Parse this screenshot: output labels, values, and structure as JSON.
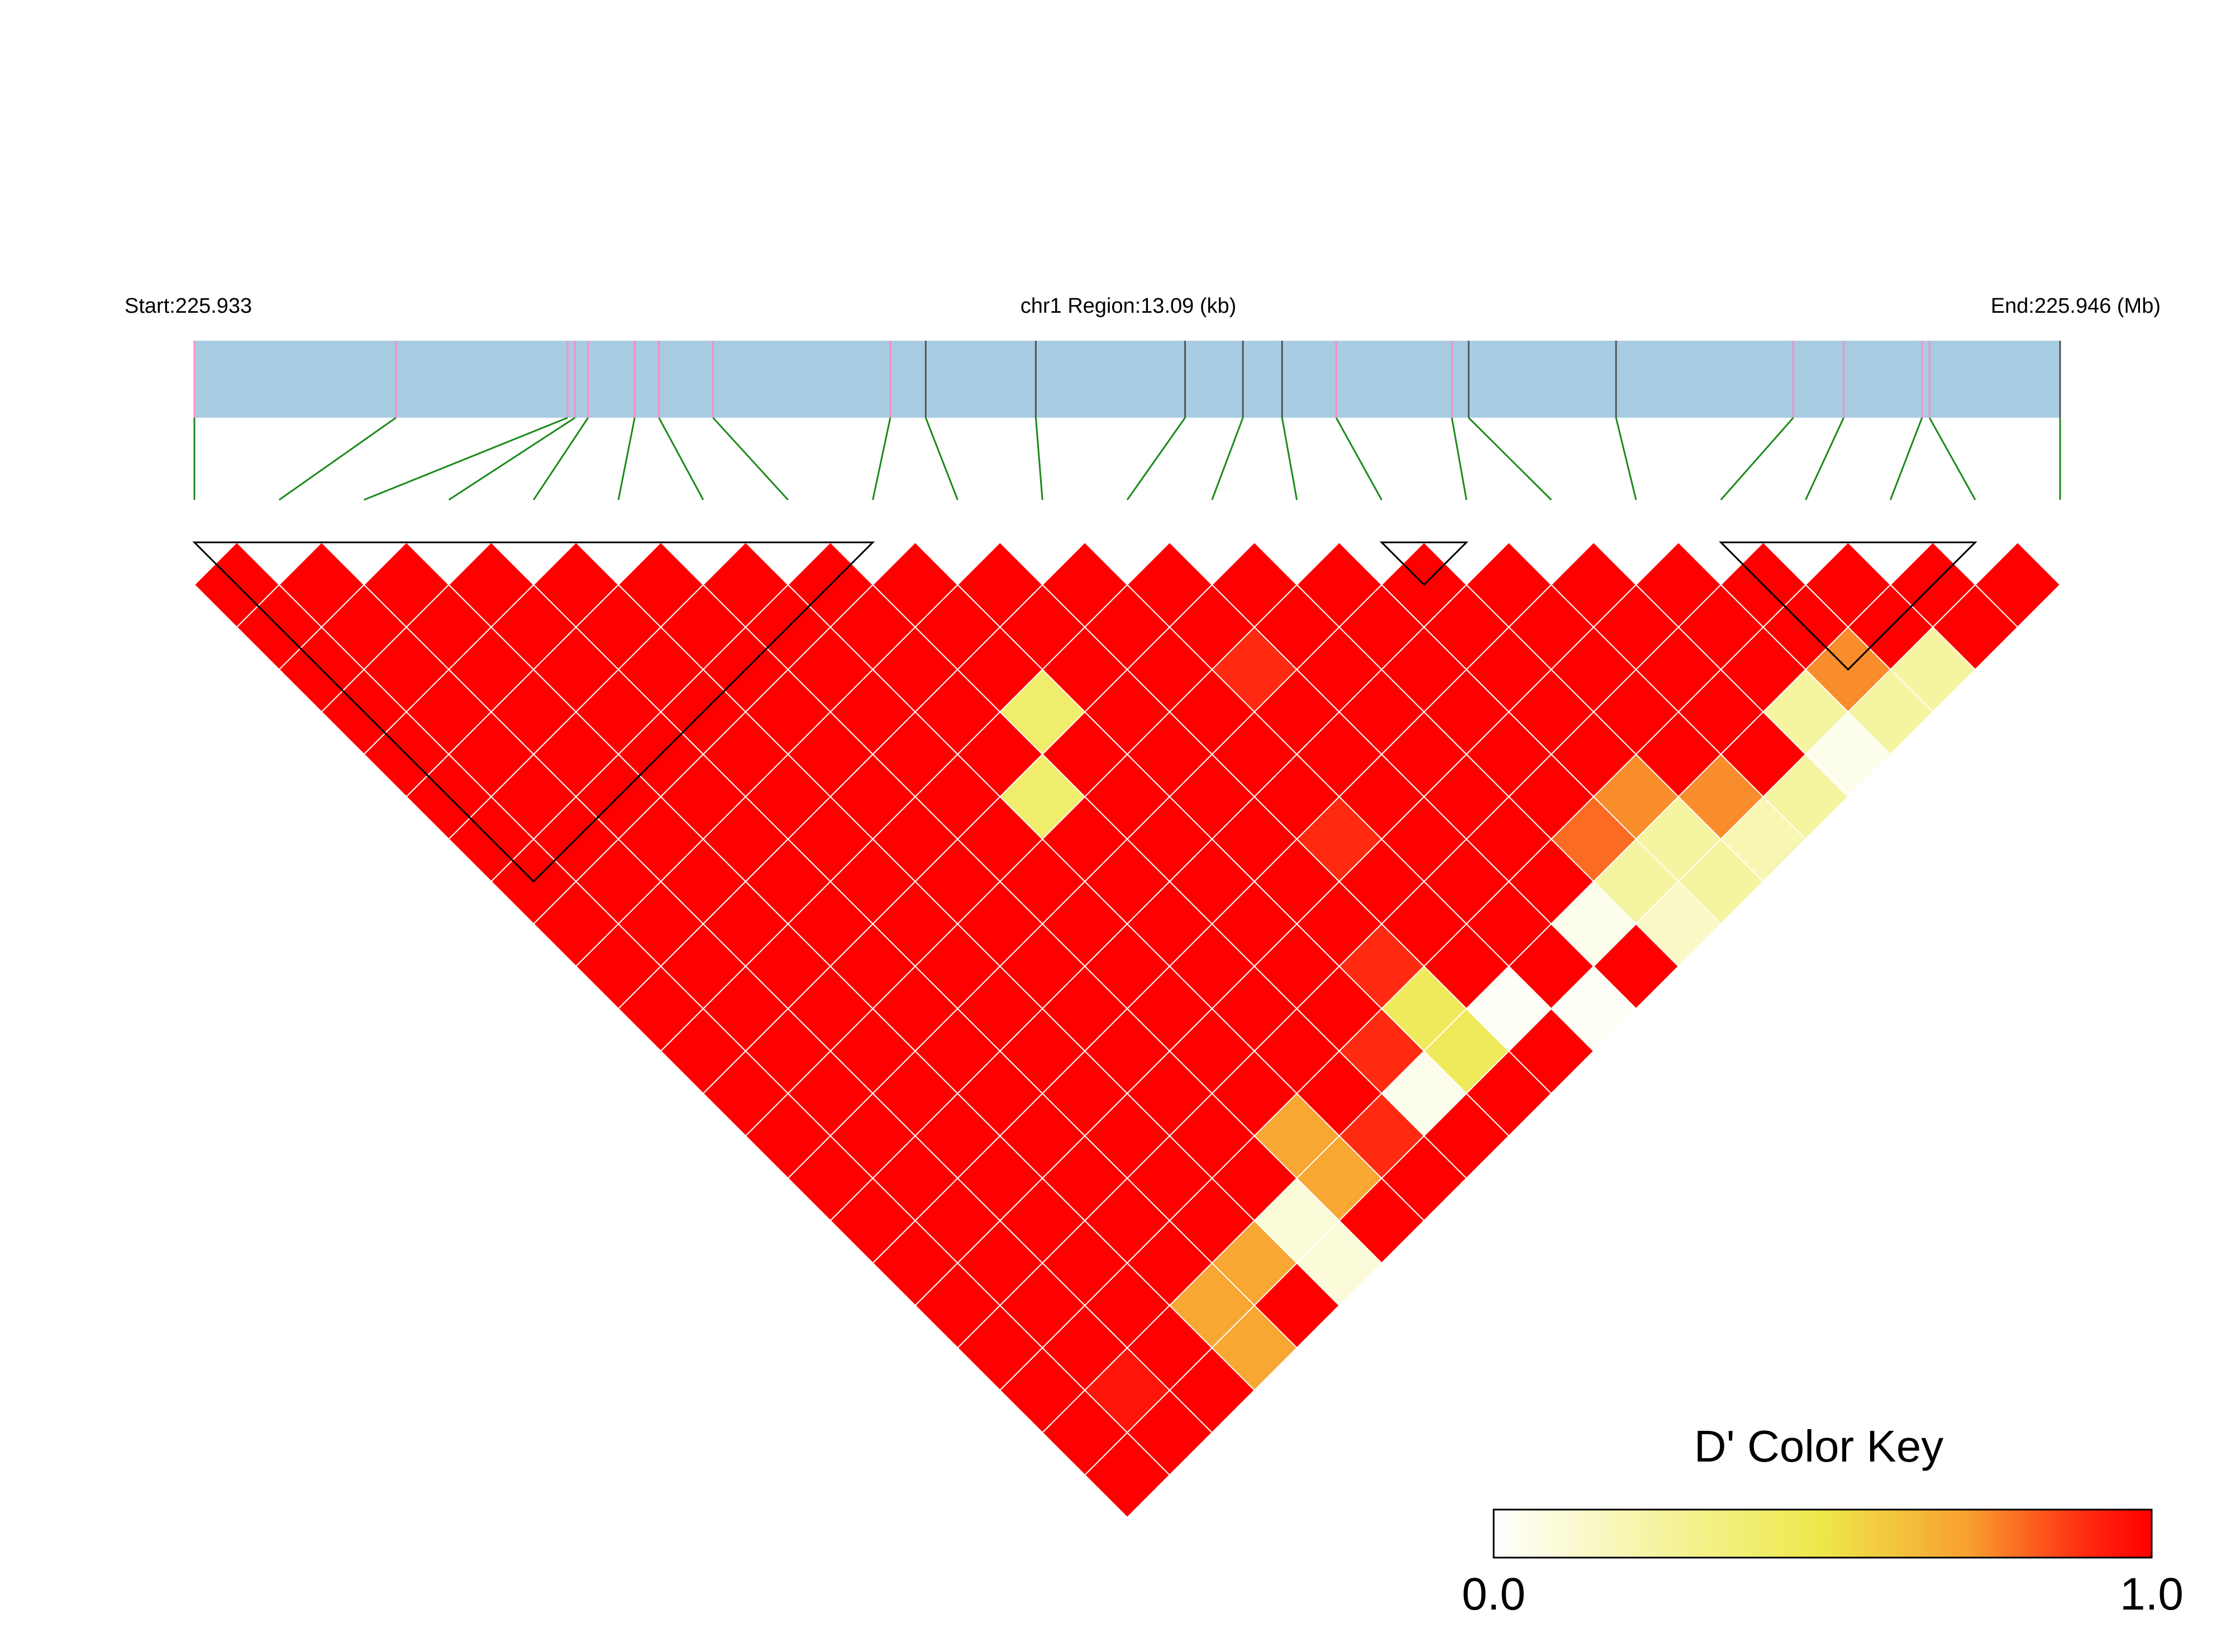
{
  "chart_data": {
    "type": "heatmap",
    "title": "",
    "header": {
      "start_label": "Start:225.933",
      "region_label": "chr1 Region:13.09 (kb)",
      "end_label": "End:225.946 (Mb)"
    },
    "marker_count": 23,
    "marker_positions": [
      0.0,
      0.108,
      0.2,
      0.204,
      0.211,
      0.236,
      0.249,
      0.278,
      0.373,
      0.392,
      0.451,
      0.531,
      0.562,
      0.583,
      0.612,
      0.674,
      0.683,
      0.762,
      0.857,
      0.884,
      0.926,
      0.93,
      1.0
    ],
    "marker_colors": [
      "#ff88cc",
      "#ff88cc",
      "#ff88cc",
      "#ff88cc",
      "#ff88cc",
      "#ff88cc",
      "#ff88cc",
      "#ff88cc",
      "#ff88cc",
      "#555555",
      "#555555",
      "#555555",
      "#555555",
      "#555555",
      "#ff88cc",
      "#ff88cc",
      "#555555",
      "#555555",
      "#ff88cc",
      "#ff88cc",
      "#ff88cc",
      "#ff88cc",
      "#555555"
    ],
    "ld_blocks": [
      [
        1,
        9
      ],
      [
        15,
        16
      ],
      [
        19,
        22
      ]
    ],
    "dprime_overrides": [
      {
        "i": 9,
        "j": 13,
        "d": 0.4
      },
      {
        "i": 8,
        "j": 14,
        "d": 0.4
      },
      {
        "i": 12,
        "j": 15,
        "d": 0.9
      },
      {
        "i": 11,
        "j": 18,
        "d": 0.9
      },
      {
        "i": 14,
        "j": 21,
        "d": 0.8
      },
      {
        "i": 19,
        "j": 22,
        "d": 0.75
      },
      {
        "i": 20,
        "j": 23,
        "d": 0.25
      },
      {
        "i": 19,
        "j": 23,
        "d": 0.25
      },
      {
        "i": 18,
        "j": 23,
        "d": 0.05
      },
      {
        "i": 17,
        "j": 23,
        "d": 0.25
      },
      {
        "i": 16,
        "j": 23,
        "d": 0.2
      },
      {
        "i": 15,
        "j": 23,
        "d": 0.25
      },
      {
        "i": 14,
        "j": 23,
        "d": 0.15
      },
      {
        "i": 18,
        "j": 22,
        "d": 0.25
      },
      {
        "i": 16,
        "j": 22,
        "d": 0.75
      },
      {
        "i": 15,
        "j": 22,
        "d": 0.25
      },
      {
        "i": 14,
        "j": 22,
        "d": 0.25
      },
      {
        "i": 13,
        "j": 22,
        "d": 0.05
      },
      {
        "i": 12,
        "j": 23,
        "d": 0.02
      },
      {
        "i": 11,
        "j": 22,
        "d": 0.02
      },
      {
        "i": 15,
        "j": 21,
        "d": 0.75
      },
      {
        "i": 10,
        "j": 22,
        "d": 0.45
      },
      {
        "i": 10,
        "j": 21,
        "d": 0.45
      },
      {
        "i": 9,
        "j": 22,
        "d": 0.05
      },
      {
        "i": 7,
        "j": 22,
        "d": 0.7
      },
      {
        "i": 7,
        "j": 21,
        "d": 0.7
      },
      {
        "i": 6,
        "j": 22,
        "d": 0.1
      },
      {
        "i": 5,
        "j": 22,
        "d": 0.7
      },
      {
        "i": 4,
        "j": 22,
        "d": 0.7
      },
      {
        "i": 6,
        "j": 23,
        "d": 0.1
      },
      {
        "i": 4,
        "j": 23,
        "d": 0.7
      },
      {
        "i": 2,
        "j": 22,
        "d": 0.95
      },
      {
        "i": 8,
        "j": 22,
        "d": 0.9
      },
      {
        "i": 9,
        "j": 21,
        "d": 0.9
      },
      {
        "i": 10,
        "j": 20,
        "d": 0.9
      }
    ],
    "default_dprime": 1.0,
    "color_key": {
      "title": "D' Color Key",
      "min_label": "0.0",
      "max_label": "1.0",
      "stops": [
        "#ffffff",
        "#f5f4a0",
        "#eee84a",
        "#f8a030",
        "#ff2a10",
        "#ff0000"
      ]
    }
  }
}
